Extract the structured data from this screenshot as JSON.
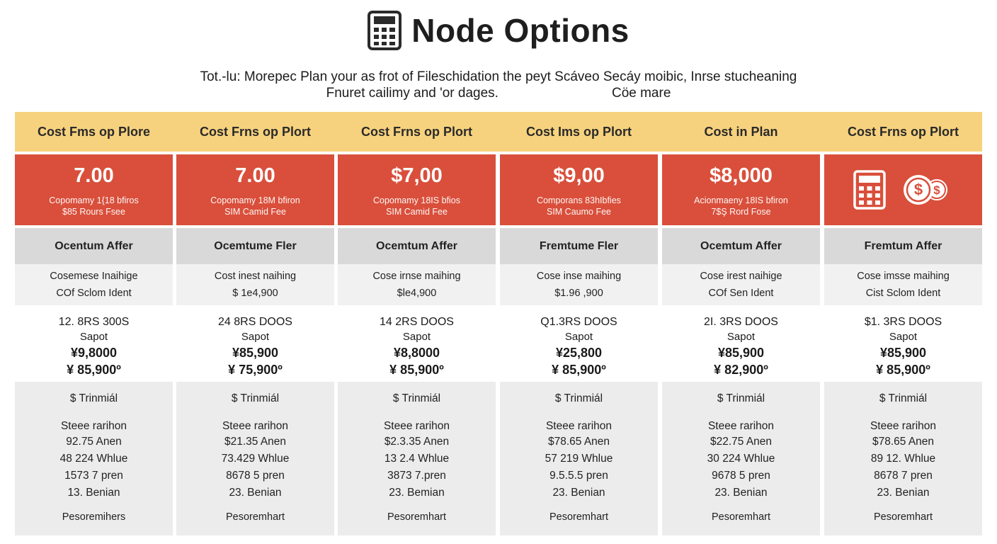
{
  "page": {
    "title": "Node Options",
    "title_icon": "calculator-icon",
    "subtitle_line1": "Tot.-lu: Morepec Plan your as frot of Fileschidation the peyt Scáveo Secáy moibic, Inrse stucheaning",
    "subtitle_line2a": "Fnuret cailimy and 'or dages.",
    "subtitle_line2b": "Cöe mare"
  },
  "colors": {
    "header_band": "#f7d27e",
    "price_band": "#d94f3b",
    "tier_band": "#d9d9d9",
    "desc_band": "#f1f1f1",
    "details_band": "#ececec"
  },
  "columns": [
    {
      "header": "Cost Fms op Plore",
      "price": "7.00",
      "price_note1": "Copomamy 1{18 bfiros",
      "price_note2": "$85 Rours Fsee",
      "tier": "Ocentum Affer",
      "desc1": "Cosemese Inaihige",
      "desc2": "COf Sclom Ident",
      "v_line1": "12. 8RS 300S",
      "v_line2": "Sapot",
      "v_line3": "¥9,8000",
      "v_line4": "¥ 85,900º",
      "d_head": "$ Trinmiál",
      "d_sub": "Steee rarihon",
      "d_l1": "92.75 Anen",
      "d_l2": "48 224 Whlue",
      "d_l3": "1573 7 pren",
      "d_l4": "13. Benian",
      "d_foot": "Pesoremihers"
    },
    {
      "header": "Cost Frns op Plort",
      "price": "7.00",
      "price_note1": "Copomamy 18M bfiron",
      "price_note2": "SIM Camid Fee",
      "tier": "Ocemtume Fler",
      "desc1": "Cost inest naihing",
      "desc2": "$ 1e4,900",
      "v_line1": "24 8RS DOOS",
      "v_line2": "Sapot",
      "v_line3": "¥85,900",
      "v_line4": "¥ 75,900º",
      "d_head": "$ Trinmiál",
      "d_sub": "Steee rarihon",
      "d_l1": "$21.35 Anen",
      "d_l2": "73.429 Whlue",
      "d_l3": "8678 5 pren",
      "d_l4": "23. Benian",
      "d_foot": "Pesoremhart"
    },
    {
      "header": "Cost Frns op Plort",
      "price": "$7,00",
      "price_note1": "Copomamy 18IS bfios",
      "price_note2": "SIM Camid Fee",
      "tier": "Ocemtum Affer",
      "desc1": "Cose irnse maihing",
      "desc2": "$le4,900",
      "v_line1": "14 2RS DOOS",
      "v_line2": "Sapot",
      "v_line3": "¥8,8000",
      "v_line4": "¥ 85,900º",
      "d_head": "$ Trinmiál",
      "d_sub": "Steee rarihon",
      "d_l1": "$2.3.35 Anen",
      "d_l2": "13 2.4 Whlue",
      "d_l3": "3873 7.pren",
      "d_l4": "23. Bemian",
      "d_foot": "Pesoremhart"
    },
    {
      "header": "Cost Ims op Plort",
      "price": "$9,00",
      "price_note1": "Comporans 83hIbfies",
      "price_note2": "SIM Caumo Fee",
      "tier": "Fremtume Fler",
      "desc1": "Cose inse maihing",
      "desc2": "$1.96 ,900",
      "v_line1": "Q1.3RS DOOS",
      "v_line2": "Sapot",
      "v_line3": "¥25,800",
      "v_line4": "¥ 85,900º",
      "d_head": "$ Trinmiál",
      "d_sub": "Steee rarihon",
      "d_l1": "$78.65 Anen",
      "d_l2": "57 219 Whlue",
      "d_l3": "9.5.5.5 pren",
      "d_l4": "23. Benian",
      "d_foot": "Pesoremhart"
    },
    {
      "header": "Cost in Plan",
      "price": "$8,000",
      "price_note1": "Acionmaeny 18IS bfiron",
      "price_note2": "7$Ş Rord Fose",
      "tier": "Ocemtum Affer",
      "desc1": "Cose irest naihige",
      "desc2": "COf Sen Ident",
      "v_line1": "2I. 3RS DOOS",
      "v_line2": "Sapot",
      "v_line3": "¥85,900",
      "v_line4": "¥ 82,900º",
      "d_head": "$ Trinmiál",
      "d_sub": "Steee rarihon",
      "d_l1": "$22.75 Anen",
      "d_l2": "30 224 Whlue",
      "d_l3": "9678 5 pren",
      "d_l4": "23. Benian",
      "d_foot": "Pesoremhart"
    },
    {
      "header": "Cost Frns op Plort",
      "price": "",
      "price_icons": [
        "calculator-icon",
        "dollar-coins-icon"
      ],
      "tier": "Fremtum Affer",
      "desc1": "Cose imsse maihing",
      "desc2": "Cist Sclom Ident",
      "v_line1": "$1. 3RS DOOS",
      "v_line2": "Sapot",
      "v_line3": "¥85,900",
      "v_line4": "¥ 85,900º",
      "d_head": "$ Trinmiál",
      "d_sub": "Steee rarihon",
      "d_l1": "$78.65 Anen",
      "d_l2": "89 12. Whlue",
      "d_l3": "8678 7 pren",
      "d_l4": "23. Benian",
      "d_foot": "Pesoremhart"
    }
  ]
}
